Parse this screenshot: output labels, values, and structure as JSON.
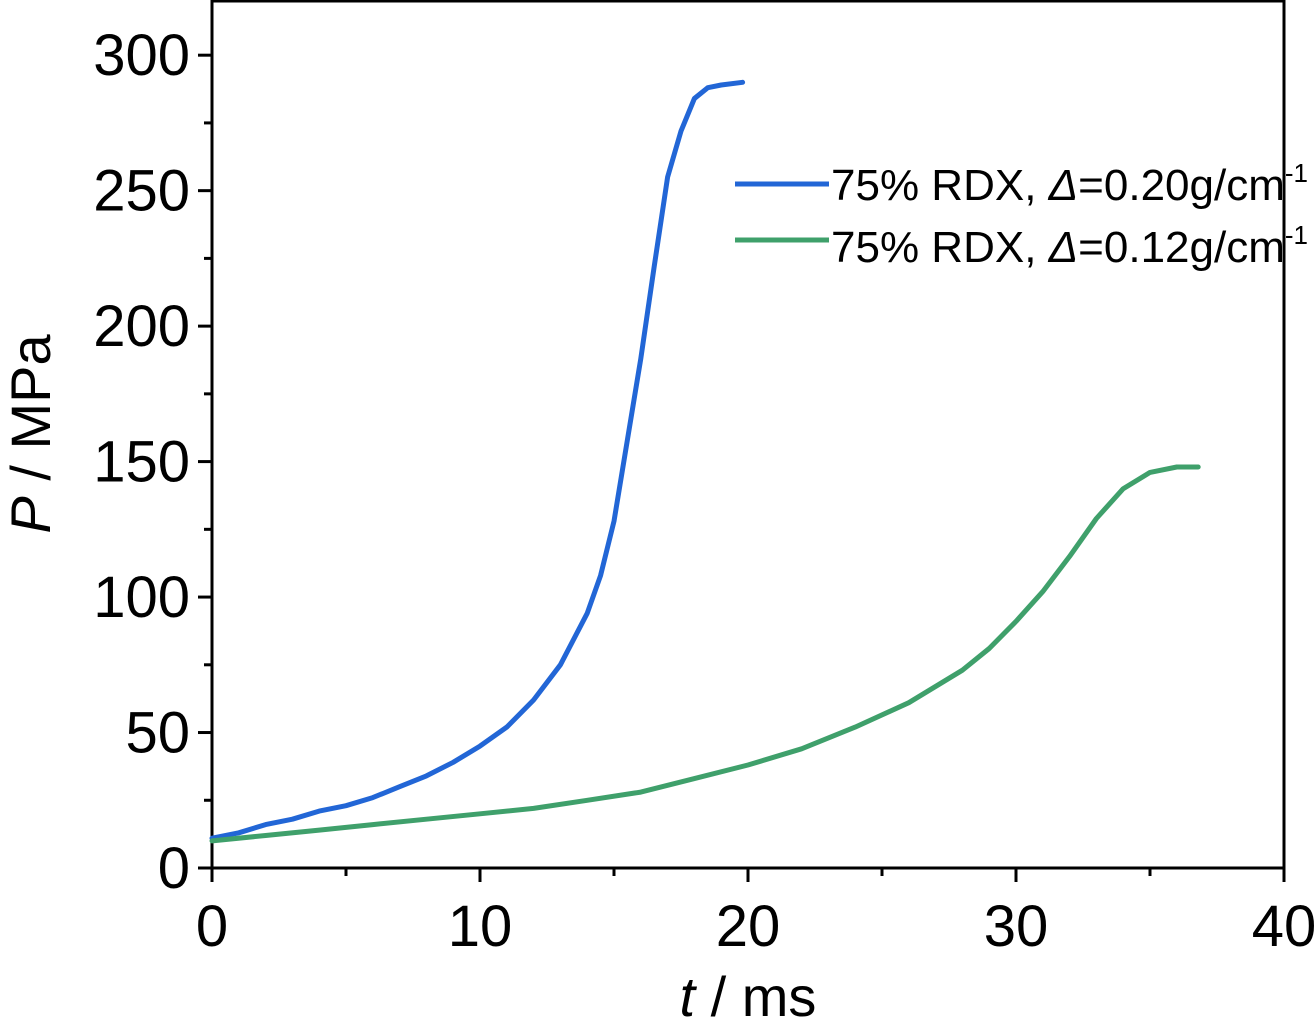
{
  "chart_data": {
    "type": "line",
    "title": "",
    "xlabel": {
      "var": "t",
      "unit": " / ms"
    },
    "ylabel": {
      "var": "P",
      "unit": " / MPa"
    },
    "xlim": [
      0,
      40
    ],
    "ylim": [
      0,
      320
    ],
    "xticks": [
      0,
      10,
      20,
      30,
      40
    ],
    "yticks": [
      0,
      50,
      100,
      150,
      200,
      250,
      300
    ],
    "x_minor_step": 5,
    "y_minor_step": 25,
    "grid": false,
    "legend_position": "top-right",
    "series": [
      {
        "name_prefix": "75% RDX, ",
        "name_symbol": "Δ",
        "name_value": "=0.20g/cm",
        "name_sup": "-1",
        "color": "#2266d6",
        "x": [
          0,
          1,
          2,
          3,
          4,
          5,
          6,
          7,
          8,
          9,
          10,
          11,
          12,
          13,
          14,
          14.5,
          15,
          15.5,
          16,
          16.5,
          17,
          17.5,
          18,
          18.5,
          19,
          19.8
        ],
        "y": [
          11,
          13,
          16,
          18,
          21,
          23,
          26,
          30,
          34,
          39,
          45,
          52,
          62,
          75,
          94,
          108,
          128,
          158,
          188,
          222,
          255,
          272,
          284,
          288,
          289,
          290
        ]
      },
      {
        "name_prefix": "75% RDX, ",
        "name_symbol": "Δ",
        "name_value": "=0.12g/cm",
        "name_sup": "-1",
        "color": "#3fa06b",
        "x": [
          0,
          2,
          4,
          6,
          8,
          10,
          12,
          14,
          16,
          18,
          20,
          22,
          24,
          26,
          28,
          29,
          30,
          31,
          32,
          33,
          34,
          35,
          36,
          36.8
        ],
        "y": [
          10,
          12,
          14,
          16,
          18,
          20,
          22,
          25,
          28,
          33,
          38,
          44,
          52,
          61,
          73,
          81,
          91,
          102,
          115,
          129,
          140,
          146,
          148,
          148
        ]
      }
    ]
  }
}
